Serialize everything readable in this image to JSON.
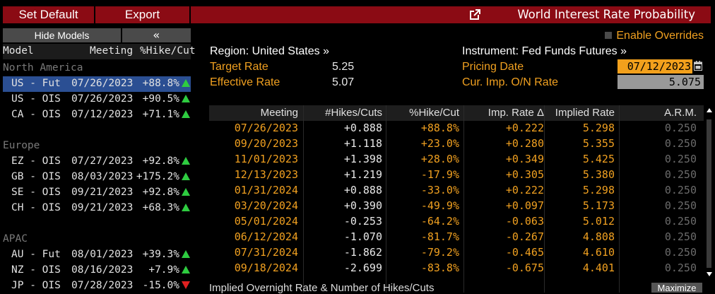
{
  "toolbar": {
    "set_default": "Set Default",
    "export": "Export",
    "title": "World Interest Rate Probability"
  },
  "left_panel": {
    "hide_models": "Hide Models",
    "collapse": "«",
    "headers": {
      "model": "Model",
      "meeting": "Meeting",
      "hike": "%Hike/Cut"
    },
    "groups": [
      {
        "name": "North America",
        "rows": [
          {
            "model": "US - Fut",
            "meeting": "07/26/2023",
            "pct": "+88.8%",
            "dir": "up",
            "selected": true
          },
          {
            "model": "US - OIS",
            "meeting": "07/26/2023",
            "pct": "+90.5%",
            "dir": "up"
          },
          {
            "model": "CA - OIS",
            "meeting": "07/12/2023",
            "pct": "+71.1%",
            "dir": "up"
          }
        ]
      },
      {
        "name": "Europe",
        "rows": [
          {
            "model": "EZ - OIS",
            "meeting": "07/27/2023",
            "pct": "+92.8%",
            "dir": "up"
          },
          {
            "model": "GB - OIS",
            "meeting": "08/03/2023",
            "pct": "+175.2%",
            "dir": "up"
          },
          {
            "model": "SE - OIS",
            "meeting": "09/21/2023",
            "pct": "+92.8%",
            "dir": "up"
          },
          {
            "model": "CH - OIS",
            "meeting": "09/21/2023",
            "pct": "+68.3%",
            "dir": "up"
          }
        ]
      },
      {
        "name": "APAC",
        "rows": [
          {
            "model": "AU - Fut",
            "meeting": "08/01/2023",
            "pct": "+39.3%",
            "dir": "up"
          },
          {
            "model": "NZ - OIS",
            "meeting": "08/16/2023",
            "pct": "+7.9%",
            "dir": "up"
          },
          {
            "model": "JP - OIS",
            "meeting": "07/28/2023",
            "pct": "-15.0%",
            "dir": "down"
          }
        ]
      }
    ]
  },
  "overrides_label": "Enable Overrides",
  "region_label": "Region: United States »",
  "instrument_label": "Instrument: Fed Funds Futures »",
  "target_rate_label": "Target Rate",
  "target_rate_value": "5.25",
  "effective_rate_label": "Effective Rate",
  "effective_rate_value": "5.07",
  "pricing_date_label": "Pricing Date",
  "pricing_date_value": "07/12/2023",
  "cur_imp_label": "Cur. Imp. O/N Rate",
  "cur_imp_value": "5.075",
  "table": {
    "headers": [
      "Meeting",
      "#Hikes/Cuts",
      "%Hike/Cut",
      "Imp. Rate Δ",
      "Implied Rate",
      "A.R.M."
    ],
    "rows": [
      [
        "07/26/2023",
        "+0.888",
        "+88.8%",
        "+0.222",
        "5.298",
        "0.250"
      ],
      [
        "09/20/2023",
        "+1.118",
        "+23.0%",
        "+0.280",
        "5.355",
        "0.250"
      ],
      [
        "11/01/2023",
        "+1.398",
        "+28.0%",
        "+0.349",
        "5.425",
        "0.250"
      ],
      [
        "12/13/2023",
        "+1.219",
        "-17.9%",
        "+0.305",
        "5.380",
        "0.250"
      ],
      [
        "01/31/2024",
        "+0.888",
        "-33.0%",
        "+0.222",
        "5.298",
        "0.250"
      ],
      [
        "03/20/2024",
        "+0.390",
        "-49.9%",
        "+0.097",
        "5.173",
        "0.250"
      ],
      [
        "05/01/2024",
        "-0.253",
        "-64.2%",
        "-0.063",
        "5.012",
        "0.250"
      ],
      [
        "06/12/2024",
        "-1.070",
        "-81.7%",
        "-0.267",
        "4.808",
        "0.250"
      ],
      [
        "07/31/2024",
        "-1.862",
        "-79.2%",
        "-0.465",
        "4.610",
        "0.250"
      ],
      [
        "09/18/2024",
        "-2.699",
        "-83.8%",
        "-0.675",
        "4.401",
        "0.250"
      ]
    ]
  },
  "footer_label": "Implied Overnight Rate & Number of Hikes/Cuts",
  "maximize_label": "Maximize"
}
